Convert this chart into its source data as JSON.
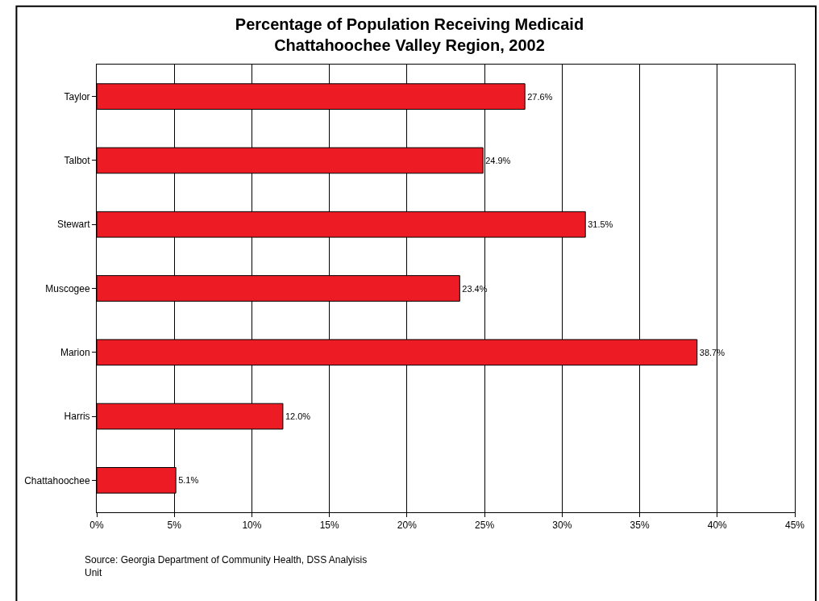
{
  "chart_data": {
    "type": "bar",
    "orientation": "horizontal",
    "title": "Percentage of Population Receiving Medicaid\nChattahoochee Valley Region, 2002",
    "categories": [
      "Taylor",
      "Talbot",
      "Stewart",
      "Muscogee",
      "Marion",
      "Harris",
      "Chattahoochee"
    ],
    "values": [
      27.6,
      24.9,
      31.5,
      23.4,
      38.7,
      12.0,
      5.1
    ],
    "value_labels": [
      "27.6%",
      "24.9%",
      "31.5%",
      "23.4%",
      "38.7%",
      "12.0%",
      "5.1%"
    ],
    "color": "#ed1c24",
    "xlim": [
      0,
      45
    ],
    "xticks": [
      {
        "value": 0,
        "label": "0%"
      },
      {
        "value": 5,
        "label": "5%"
      },
      {
        "value": 10,
        "label": "10%"
      },
      {
        "value": 15,
        "label": "15%"
      },
      {
        "value": 20,
        "label": "20%"
      },
      {
        "value": 25,
        "label": "25%"
      },
      {
        "value": 30,
        "label": "30%"
      },
      {
        "value": 35,
        "label": "35%"
      },
      {
        "value": 40,
        "label": "40%"
      },
      {
        "value": 45,
        "label": "45%"
      }
    ],
    "grid": "x",
    "legend": false,
    "annotations": [
      "Source: Georgia Department of Community Health, DSS Analyisis Unit"
    ]
  }
}
